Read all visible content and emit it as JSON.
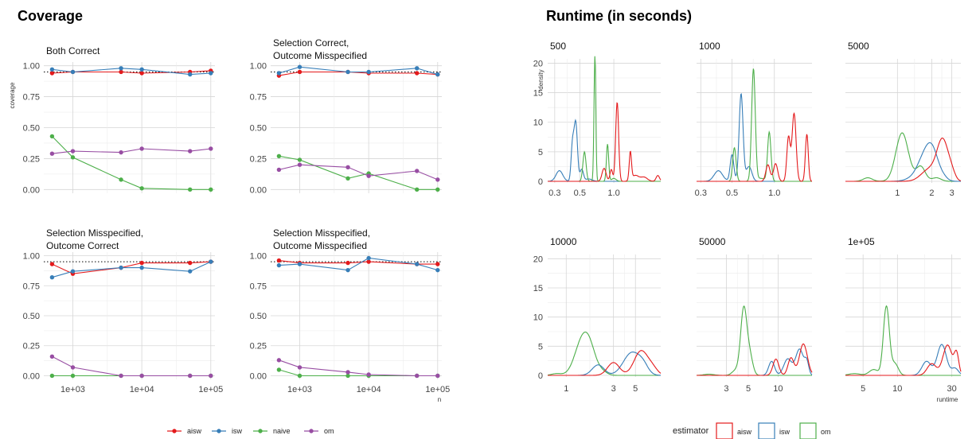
{
  "titles": {
    "coverage": "Coverage",
    "runtime": "Runtime (in seconds)"
  },
  "chart_data": [
    {
      "type": "line",
      "title": "Coverage",
      "ylabel": "coverage",
      "xlabel": "n",
      "x_scale": "log10",
      "x": [
        500,
        1000,
        5000,
        10000,
        50000,
        100000
      ],
      "x_ticks": [
        1000,
        10000,
        100000
      ],
      "x_tick_labels": [
        "1e+03",
        "1e+04",
        "1e+05"
      ],
      "ylim": [
        -0.03,
        1.03
      ],
      "y_ticks": [
        0,
        0.25,
        0.5,
        0.75,
        1
      ],
      "y_tick_labels": [
        "0.00",
        "0.25",
        "0.50",
        "0.75",
        "1.00"
      ],
      "reference_line": 0.95,
      "legend_position": "bottom",
      "colors": {
        "aisw": "#e41a1c",
        "isw": "#377eb8",
        "naive": "#4daf4a",
        "om": "#984ea3"
      },
      "legend": [
        "aisw",
        "isw",
        "naive",
        "om"
      ],
      "panels": [
        {
          "title": [
            "Both Correct"
          ],
          "series": [
            {
              "name": "aisw",
              "values": [
                0.94,
                0.95,
                0.95,
                0.94,
                0.95,
                0.96
              ]
            },
            {
              "name": "isw",
              "values": [
                0.97,
                0.95,
                0.98,
                0.97,
                0.93,
                0.94
              ]
            },
            {
              "name": "naive",
              "values": [
                0.43,
                0.26,
                0.08,
                0.01,
                0.0,
                0.0
              ]
            },
            {
              "name": "om",
              "values": [
                0.29,
                0.31,
                0.3,
                0.33,
                0.31,
                0.33
              ]
            }
          ]
        },
        {
          "title": [
            "Selection Correct,",
            " Outcome Misspecified"
          ],
          "series": [
            {
              "name": "aisw",
              "values": [
                0.92,
                0.95,
                0.95,
                0.94,
                0.94,
                0.93
              ]
            },
            {
              "name": "isw",
              "values": [
                0.94,
                0.99,
                0.95,
                0.95,
                0.98,
                0.93
              ]
            },
            {
              "name": "naive",
              "values": [
                0.27,
                0.24,
                0.09,
                0.13,
                0.0,
                0.0
              ]
            },
            {
              "name": "om",
              "values": [
                0.16,
                0.2,
                0.18,
                0.11,
                0.15,
                0.08
              ]
            }
          ]
        },
        {
          "title": [
            "Selection Misspecified,",
            " Outcome Correct"
          ],
          "series": [
            {
              "name": "aisw",
              "values": [
                0.93,
                0.85,
                0.9,
                0.94,
                0.94,
                0.95
              ]
            },
            {
              "name": "isw",
              "values": [
                0.82,
                0.87,
                0.9,
                0.9,
                0.87,
                0.95
              ]
            },
            {
              "name": "naive",
              "values": [
                0.0,
                0.0,
                0.0,
                0.0,
                0.0,
                0.0
              ]
            },
            {
              "name": "om",
              "values": [
                0.16,
                0.07,
                0.0,
                0.0,
                0.0,
                0.0
              ]
            }
          ]
        },
        {
          "title": [
            "Selection Misspecified,",
            " Outcome Misspecified"
          ],
          "series": [
            {
              "name": "aisw",
              "values": [
                0.96,
                0.94,
                0.94,
                0.95,
                0.93,
                0.93
              ]
            },
            {
              "name": "isw",
              "values": [
                0.92,
                0.93,
                0.88,
                0.98,
                0.93,
                0.88
              ]
            },
            {
              "name": "naive",
              "values": [
                0.05,
                0.0,
                0.0,
                0.0,
                0.0,
                0.0
              ]
            },
            {
              "name": "om",
              "values": [
                0.13,
                0.07,
                0.03,
                0.01,
                0.0,
                0.0
              ]
            }
          ]
        }
      ]
    },
    {
      "type": "area",
      "subtype": "density",
      "title": "Runtime (in seconds)",
      "ylabel": "density",
      "xlabel": "runtime",
      "x_scale": "log10",
      "ylim": [
        0,
        21
      ],
      "y_ticks": [
        0,
        5,
        10,
        15,
        20
      ],
      "y_tick_labels": [
        "0",
        "5",
        "10",
        "15",
        "20"
      ],
      "legend_title": "estimator",
      "legend": [
        "aisw",
        "isw",
        "om"
      ],
      "legend_position": "bottom",
      "colors": {
        "aisw": "#e41a1c",
        "isw": "#377eb8",
        "om": "#4daf4a"
      },
      "panels": [
        {
          "title": "500",
          "xlim": [
            0.26,
            2.6
          ],
          "x_ticks": [
            0.3,
            0.5,
            1.0
          ],
          "x_tick_labels": [
            "0.3",
            "0.5",
            "1.0"
          ],
          "series": [
            {
              "name": "isw",
              "peaks": [
                [
                  0.33,
                  1.8,
                  0.03
                ],
                [
                  0.43,
                  5.8,
                  0.012
                ],
                [
                  0.46,
                  10.0,
                  0.015
                ],
                [
                  0.52,
                  2.0,
                  0.015
                ],
                [
                  0.6,
                  0.4,
                  0.03
                ]
              ]
            },
            {
              "name": "om",
              "peaks": [
                [
                  0.55,
                  5.0,
                  0.014
                ],
                [
                  0.68,
                  21.3,
                  0.008
                ],
                [
                  0.88,
                  6.3,
                  0.01
                ],
                [
                  1.0,
                  0.5,
                  0.02
                ]
              ]
            },
            {
              "name": "aisw",
              "peaks": [
                [
                  0.82,
                  2.2,
                  0.018
                ],
                [
                  0.95,
                  2.0,
                  0.012
                ],
                [
                  1.07,
                  13.4,
                  0.013
                ],
                [
                  1.4,
                  4.8,
                  0.01
                ],
                [
                  1.55,
                  1.0,
                  0.03
                ],
                [
                  1.85,
                  0.7,
                  0.03
                ],
                [
                  2.45,
                  1.0,
                  0.015
                ]
              ]
            }
          ]
        },
        {
          "title": "1000",
          "xlim": [
            0.28,
            1.85
          ],
          "x_ticks": [
            0.3,
            0.5,
            1.0
          ],
          "x_tick_labels": [
            "0.3",
            "0.5",
            "1.0"
          ],
          "series": [
            {
              "name": "isw",
              "peaks": [
                [
                  0.4,
                  1.8,
                  0.03
                ],
                [
                  0.5,
                  4.5,
                  0.013
                ],
                [
                  0.58,
                  14.8,
                  0.014
                ],
                [
                  0.66,
                  2.5,
                  0.02
                ]
              ]
            },
            {
              "name": "om",
              "peaks": [
                [
                  0.52,
                  5.7,
                  0.012
                ],
                [
                  0.71,
                  19.0,
                  0.013
                ],
                [
                  0.92,
                  8.3,
                  0.012
                ],
                [
                  0.8,
                  0.5,
                  0.03
                ]
              ]
            },
            {
              "name": "aisw",
              "peaks": [
                [
                  0.9,
                  2.8,
                  0.015
                ],
                [
                  1.02,
                  3.0,
                  0.015
                ],
                [
                  1.26,
                  7.5,
                  0.012
                ],
                [
                  1.38,
                  11.5,
                  0.014
                ],
                [
                  1.7,
                  8.0,
                  0.01
                ]
              ]
            }
          ]
        },
        {
          "title": "5000",
          "xlim": [
            0.35,
            3.6
          ],
          "x_ticks": [
            1,
            2,
            3
          ],
          "x_tick_labels": [
            "1",
            "2",
            "3"
          ],
          "series": [
            {
              "name": "om",
              "peaks": [
                [
                  0.55,
                  0.6,
                  0.04
                ],
                [
                  1.1,
                  8.2,
                  0.055
                ],
                [
                  1.6,
                  2.5,
                  0.04
                ],
                [
                  2.2,
                  0.6,
                  0.04
                ]
              ]
            },
            {
              "name": "isw",
              "peaks": [
                [
                  1.3,
                  0.3,
                  0.06
                ],
                [
                  1.75,
                  4.3,
                  0.065
                ],
                [
                  2.05,
                  3.5,
                  0.05
                ],
                [
                  2.5,
                  0.6,
                  0.04
                ]
              ]
            },
            {
              "name": "aisw",
              "peaks": [
                [
                  1.9,
                  2.0,
                  0.07
                ],
                [
                  2.5,
                  6.8,
                  0.05
                ],
                [
                  3.0,
                  1.0,
                  0.03
                ]
              ]
            }
          ]
        },
        {
          "title": "10000",
          "xlim": [
            0.65,
            9.0
          ],
          "x_ticks": [
            1,
            3,
            5
          ],
          "x_tick_labels": [
            "1",
            "3",
            "5"
          ],
          "series": [
            {
              "name": "om",
              "peaks": [
                [
                  0.8,
                  0.3,
                  0.05
                ],
                [
                  1.45,
                  5.8,
                  0.075
                ],
                [
                  1.75,
                  3.0,
                  0.06
                ],
                [
                  2.3,
                  0.6,
                  0.05
                ]
              ]
            },
            {
              "name": "isw",
              "peaks": [
                [
                  2.1,
                  1.8,
                  0.06
                ],
                [
                  4.6,
                  3.9,
                  0.085
                ],
                [
                  6.0,
                  1.2,
                  0.05
                ]
              ]
            },
            {
              "name": "aisw",
              "peaks": [
                [
                  3.0,
                  2.2,
                  0.06
                ],
                [
                  5.7,
                  4.2,
                  0.07
                ],
                [
                  7.5,
                  1.0,
                  0.05
                ]
              ]
            }
          ]
        },
        {
          "title": "50000",
          "xlim": [
            1.5,
            22
          ],
          "x_ticks": [
            3,
            5,
            10
          ],
          "x_tick_labels": [
            "3",
            "5",
            "10"
          ],
          "series": [
            {
              "name": "om",
              "peaks": [
                [
                  2.0,
                  0.2,
                  0.05
                ],
                [
                  3.7,
                  0.8,
                  0.035
                ],
                [
                  4.5,
                  11.5,
                  0.032
                ],
                [
                  5.2,
                  3.0,
                  0.03
                ]
              ]
            },
            {
              "name": "isw",
              "peaks": [
                [
                  8.6,
                  2.4,
                  0.03
                ],
                [
                  12.5,
                  2.8,
                  0.04
                ],
                [
                  16.5,
                  4.5,
                  0.04
                ],
                [
                  19.5,
                  2.0,
                  0.02
                ]
              ]
            },
            {
              "name": "aisw",
              "peaks": [
                [
                  9.5,
                  2.8,
                  0.03
                ],
                [
                  13.5,
                  3.0,
                  0.03
                ],
                [
                  18.0,
                  5.4,
                  0.04
                ]
              ]
            }
          ]
        },
        {
          "title": "1e+05",
          "xlim": [
            3.5,
            36
          ],
          "x_ticks": [
            5,
            10,
            30
          ],
          "x_tick_labels": [
            "5",
            "10",
            "30"
          ],
          "series": [
            {
              "name": "om",
              "peaks": [
                [
                  4.2,
                  0.3,
                  0.05
                ],
                [
                  6.2,
                  1.0,
                  0.04
                ],
                [
                  8.0,
                  11.8,
                  0.026
                ],
                [
                  9.5,
                  2.0,
                  0.03
                ]
              ]
            },
            {
              "name": "isw",
              "peaks": [
                [
                  18.0,
                  2.4,
                  0.04
                ],
                [
                  24.5,
                  5.3,
                  0.04
                ],
                [
                  32.0,
                  1.2,
                  0.03
                ]
              ]
            },
            {
              "name": "aisw",
              "peaks": [
                [
                  20.0,
                  2.0,
                  0.04
                ],
                [
                  27.5,
                  5.2,
                  0.04
                ],
                [
                  33.0,
                  3.5,
                  0.02
                ]
              ]
            }
          ]
        }
      ]
    }
  ]
}
